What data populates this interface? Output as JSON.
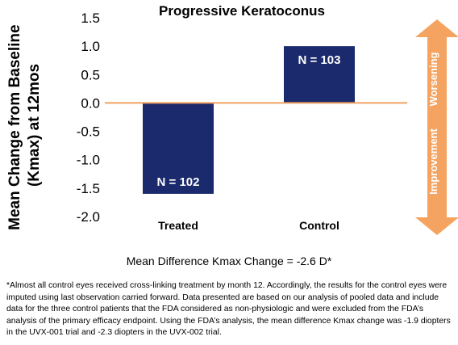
{
  "chart_data": {
    "type": "bar",
    "title": "Progressive Keratoconus",
    "ylabel": "Mean Change from Baseline (Kmax) at 12mos",
    "xlabel": "",
    "categories": [
      "Treated",
      "Control"
    ],
    "values": [
      -1.6,
      1.0
    ],
    "bar_labels": [
      "N = 102",
      "N = 103"
    ],
    "ylim": [
      -2.0,
      1.5
    ],
    "yticks": [
      "1.5",
      "1.0",
      "0.5",
      "0.0",
      "-0.5",
      "-1.0",
      "-1.5",
      "-2.0"
    ],
    "grid": false,
    "annotation_arrow": {
      "up_label": "Worsening",
      "down_label": "Improvement"
    },
    "colors": {
      "bar": "#1a2a6c",
      "zero_line": "#f0a060",
      "arrow": "#f4a460"
    }
  },
  "mean_difference": "Mean Difference Kmax Change = -2.6 D*",
  "footnote": "*Almost all control eyes received cross-linking treatment by month 12. Accordingly, the results for the control eyes were imputed using last observation carried forward. Data presented are based on our analysis of pooled data and include data for the three control patients that the FDA considered as non-physiologic and were excluded from the FDA’s analysis of the primary efficacy endpoint. Using the FDA’s analysis, the mean difference Kmax change was -1.9 diopters in the UVX-001 trial and -2.3 diopters in the UVX-002 trial."
}
